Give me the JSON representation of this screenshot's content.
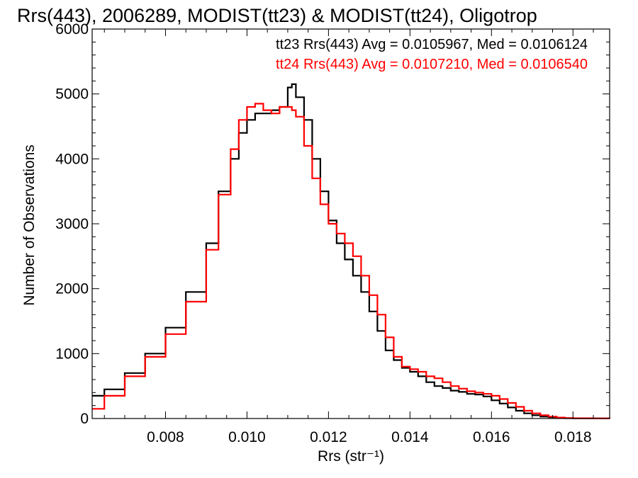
{
  "chart_data": {
    "type": "line",
    "title": "Rrs(443), 2006289, MODIST(tt23) & MODIST(tt24), Oligotrop",
    "xlabel": "Rrs (str⁻¹)",
    "ylabel": "Number of Observations",
    "xlim": [
      0.0062,
      0.0189
    ],
    "ylim": [
      0,
      6000
    ],
    "x_ticks": [
      0.008,
      0.01,
      0.012,
      0.014,
      0.016,
      0.018
    ],
    "x_tick_labels": [
      "0.008",
      "0.010",
      "0.012",
      "0.014",
      "0.016",
      "0.018"
    ],
    "y_ticks": [
      0,
      1000,
      2000,
      3000,
      4000,
      5000,
      6000
    ],
    "y_tick_labels": [
      "0",
      "1000",
      "2000",
      "3000",
      "4000",
      "5000",
      "6000"
    ],
    "grid": false,
    "annotations": [
      {
        "text": "tt23 Rrs(443) Avg = 0.0105967, Med = 0.0106124",
        "color": "#000000"
      },
      {
        "text": "tt24 Rrs(443) Avg = 0.0107210, Med = 0.0106540",
        "color": "#ff0000"
      }
    ],
    "series": [
      {
        "color": "#000000",
        "x": [
          0.0062,
          0.0065,
          0.007,
          0.0075,
          0.008,
          0.0085,
          0.009,
          0.0093,
          0.0096,
          0.0098,
          0.01,
          0.0102,
          0.0104,
          0.0106,
          0.0108,
          0.011,
          0.0111,
          0.0112,
          0.0114,
          0.0116,
          0.0118,
          0.012,
          0.0122,
          0.0124,
          0.0126,
          0.0128,
          0.013,
          0.0132,
          0.0134,
          0.0136,
          0.0138,
          0.014,
          0.0142,
          0.0144,
          0.0146,
          0.0148,
          0.015,
          0.0152,
          0.0154,
          0.0156,
          0.0158,
          0.016,
          0.0162,
          0.0164,
          0.0166,
          0.0168,
          0.017,
          0.0172,
          0.0174,
          0.0176,
          0.0178,
          0.018,
          0.0185,
          0.0189
        ],
        "y": [
          350,
          450,
          700,
          1000,
          1400,
          1950,
          2700,
          3500,
          4000,
          4400,
          4600,
          4700,
          4700,
          4750,
          4800,
          5100,
          5150,
          4950,
          4600,
          4000,
          3500,
          3050,
          2700,
          2450,
          2200,
          1950,
          1650,
          1350,
          1050,
          900,
          780,
          720,
          650,
          560,
          500,
          470,
          430,
          410,
          380,
          370,
          340,
          280,
          230,
          170,
          120,
          80,
          50,
          30,
          20,
          10,
          5,
          3,
          1,
          0
        ]
      },
      {
        "color": "#ff0000",
        "x": [
          0.0062,
          0.0065,
          0.007,
          0.0075,
          0.008,
          0.0085,
          0.009,
          0.0093,
          0.0096,
          0.0098,
          0.01,
          0.0102,
          0.0104,
          0.0106,
          0.0108,
          0.011,
          0.0111,
          0.0112,
          0.0114,
          0.0116,
          0.0118,
          0.012,
          0.0122,
          0.0124,
          0.0126,
          0.0128,
          0.013,
          0.0132,
          0.0134,
          0.0136,
          0.0138,
          0.014,
          0.0142,
          0.0144,
          0.0146,
          0.0148,
          0.015,
          0.0152,
          0.0154,
          0.0156,
          0.0158,
          0.016,
          0.0162,
          0.0164,
          0.0166,
          0.0168,
          0.017,
          0.0172,
          0.0174,
          0.0176,
          0.0178,
          0.018,
          0.0185,
          0.0189
        ],
        "y": [
          150,
          350,
          650,
          950,
          1300,
          1800,
          2600,
          3450,
          4150,
          4600,
          4800,
          4850,
          4750,
          4700,
          4800,
          4800,
          4750,
          4650,
          4200,
          3700,
          3300,
          3000,
          2850,
          2700,
          2500,
          2200,
          1900,
          1600,
          1250,
          950,
          800,
          760,
          720,
          650,
          620,
          560,
          500,
          460,
          420,
          400,
          380,
          350,
          300,
          240,
          180,
          120,
          80,
          50,
          30,
          15,
          8,
          4,
          1,
          0
        ]
      }
    ]
  }
}
